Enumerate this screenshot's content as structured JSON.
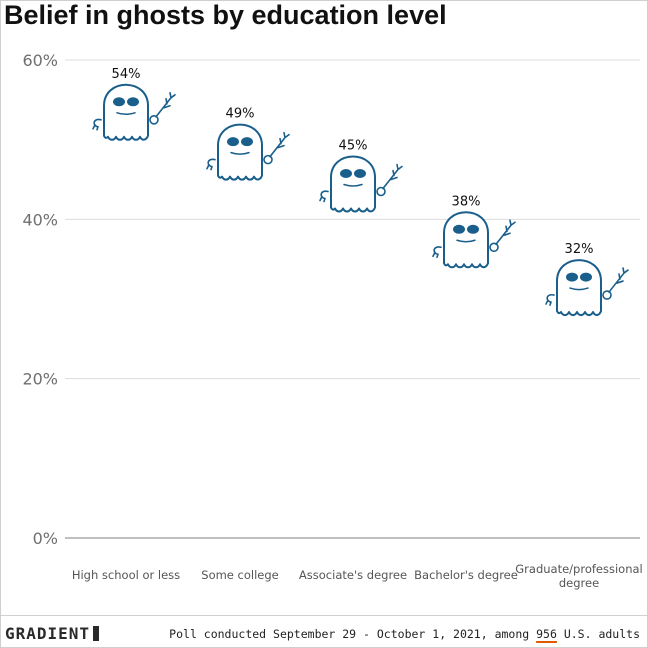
{
  "chart_data": {
    "type": "pictogram-scatter",
    "title": "Belief in ghosts by education level",
    "categories": [
      "High school or less",
      "Some college",
      "Associate's degree",
      "Bachelor's degree",
      "Graduate/professional degree"
    ],
    "values": [
      54,
      49,
      45,
      38,
      32
    ],
    "value_labels": [
      "54%",
      "49%",
      "45%",
      "38%",
      "32%"
    ],
    "yticks": [
      0,
      20,
      40,
      60
    ],
    "ytick_labels": [
      "0%",
      "20%",
      "40%",
      "60%"
    ],
    "ylim": [
      0,
      60
    ],
    "grid": true,
    "marker_icon": "ghost-icon",
    "marker_color": "#1a5f8c"
  },
  "footer": {
    "brand": "GRADIENT",
    "note_before": "Poll conducted September 29 - October 1, 2021, among ",
    "note_highlight": "956",
    "note_after": " U.S. adults",
    "highlight_color": "#e05a00"
  }
}
